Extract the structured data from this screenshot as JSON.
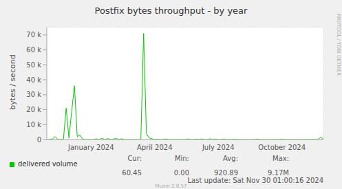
{
  "chart_data": {
    "type": "line",
    "title": "Postfix bytes throughput - by year",
    "y_label": "bytes / second",
    "categories": [
      null,
      null,
      null,
      null,
      null,
      null,
      null,
      null,
      null,
      null,
      null,
      null,
      null,
      null,
      null,
      null,
      "January 2024",
      null,
      null,
      null,
      null,
      null,
      null,
      null,
      null,
      null,
      null,
      null,
      null,
      null,
      null,
      null,
      null,
      null,
      null,
      null,
      null,
      null,
      null,
      "April 2024",
      null,
      null,
      null,
      null,
      null,
      null,
      null,
      null,
      null,
      null,
      null,
      null,
      null,
      null,
      null,
      null,
      null,
      null,
      null,
      null,
      null,
      null,
      "July 2024",
      null,
      null,
      null,
      null,
      null,
      null,
      null,
      null,
      null,
      null,
      null,
      null,
      null,
      null,
      null,
      null,
      null,
      null,
      null,
      null,
      null,
      null,
      "October 2024",
      null,
      null,
      null,
      null,
      null,
      null,
      null,
      null,
      null,
      null,
      null,
      null,
      null,
      null,
      null
    ],
    "series": [
      {
        "name": "delivered volume",
        "color": "#00cc00",
        "values": [
          0,
          0,
          300,
          2000,
          0,
          0,
          0,
          21000,
          1000,
          19000,
          36000,
          2000,
          3000,
          200,
          0,
          0,
          0,
          0,
          500,
          0,
          800,
          0,
          600,
          0,
          300,
          700,
          0,
          500,
          0,
          0,
          0,
          0,
          0,
          0,
          0,
          71000,
          4000,
          1000,
          500,
          0,
          300,
          0,
          0,
          400,
          0,
          0,
          0,
          0,
          0,
          0,
          0,
          400,
          0,
          0,
          300,
          0,
          400,
          0,
          0,
          500,
          0,
          300,
          0,
          0,
          300,
          0,
          0,
          0,
          200,
          0,
          0,
          0,
          0,
          0,
          0,
          0,
          300,
          0,
          0,
          0,
          0,
          0,
          0,
          0,
          0,
          200,
          0,
          0,
          0,
          0,
          0,
          0,
          0,
          0,
          0,
          0,
          0,
          0,
          0,
          1500,
          300
        ]
      }
    ],
    "ylim": [
      0,
      75000
    ],
    "yticks": [
      0,
      {
        "value": 10000,
        "label": "10 k"
      },
      {
        "value": 20000,
        "label": "20 k"
      },
      {
        "value": 30000,
        "label": "30 k"
      },
      {
        "value": 40000,
        "label": "40 k"
      },
      {
        "value": 50000,
        "label": "50 k"
      },
      {
        "value": 60000,
        "label": "60 k"
      },
      {
        "value": 70000,
        "label": "70 k"
      }
    ],
    "grid": true,
    "legend_table": {
      "columns": [
        "Cur:",
        "Min:",
        "Avg:",
        "Max:"
      ],
      "rows": [
        {
          "name": "delivered volume",
          "values": [
            "60.45",
            "0.00",
            "920.89",
            "9.17M"
          ]
        }
      ]
    },
    "annotations": [
      "Last update: Sat Nov 30 01:00:16 2024",
      "Munin 2.0.57",
      "RRDTOOL / TOBI OETIKER"
    ]
  }
}
